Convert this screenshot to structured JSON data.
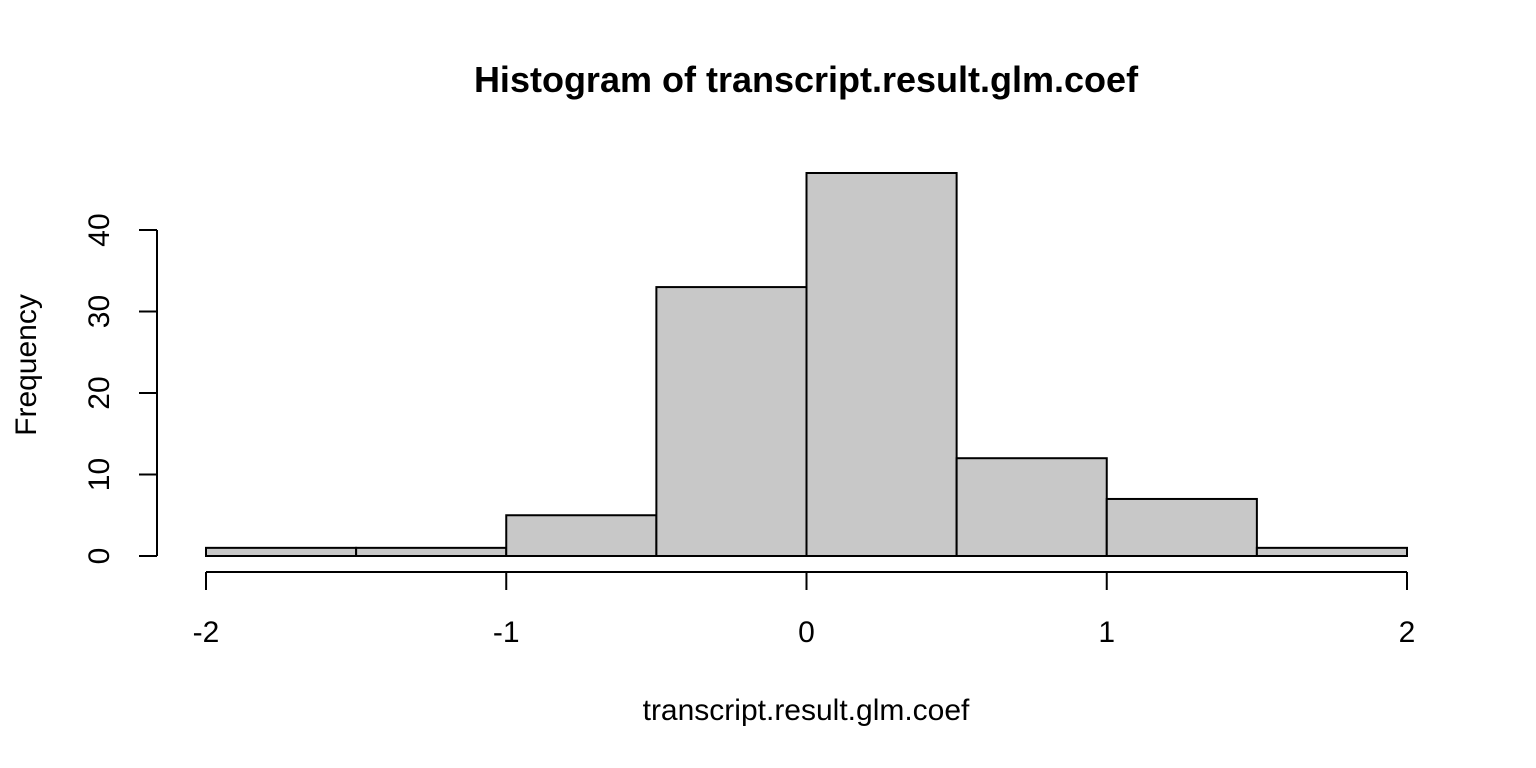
{
  "chart_data": {
    "type": "bar",
    "title": "Histogram of transcript.result.glm.coef",
    "xlabel": "transcript.result.glm.coef",
    "ylabel": "Frequency",
    "bins": [
      {
        "x0": -2.0,
        "x1": -1.5,
        "count": 1
      },
      {
        "x0": -1.5,
        "x1": -1.0,
        "count": 1
      },
      {
        "x0": -1.0,
        "x1": -0.5,
        "count": 5
      },
      {
        "x0": -0.5,
        "x1": 0.0,
        "count": 33
      },
      {
        "x0": 0.0,
        "x1": 0.5,
        "count": 47
      },
      {
        "x0": 0.5,
        "x1": 1.0,
        "count": 12
      },
      {
        "x0": 1.0,
        "x1": 1.5,
        "count": 7
      },
      {
        "x0": 1.5,
        "x1": 2.0,
        "count": 1
      }
    ],
    "xlim": [
      -2,
      2
    ],
    "ylim": [
      0,
      47
    ],
    "x_ticks": [
      -2,
      -1,
      0,
      1,
      2
    ],
    "x_tick_labels": [
      "-2",
      "-1",
      "0",
      "1",
      "2"
    ],
    "y_ticks": [
      0,
      10,
      20,
      30,
      40
    ],
    "y_tick_labels": [
      "0",
      "10",
      "20",
      "30",
      "40"
    ],
    "grid": false,
    "bar_color": "#c8c8c8",
    "edge_color": "#000000"
  }
}
